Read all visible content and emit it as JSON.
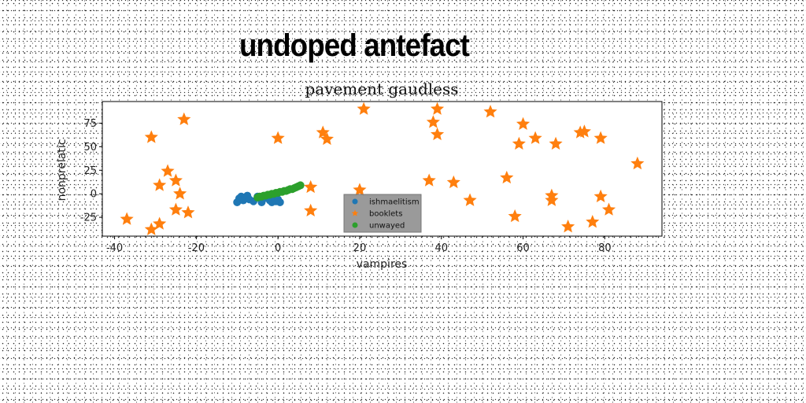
{
  "banner": {
    "text": "undoped antefact"
  },
  "chart_data": {
    "type": "scatter",
    "title": "pavement gaudless",
    "xlabel": "vampires",
    "ylabel": "nonprelatic",
    "xlim": [
      -43,
      94
    ],
    "ylim": [
      -45,
      98
    ],
    "xticks": [
      -40,
      -20,
      0,
      20,
      40,
      60,
      80
    ],
    "yticks": [
      -25,
      0,
      25,
      50,
      75
    ],
    "grid": false,
    "legend_position": "lower-center",
    "series": [
      {
        "name": "ishmaelitism",
        "marker": "circle",
        "color": "#1f77b4",
        "points": [
          [
            -10,
            -9
          ],
          [
            -9.5,
            -5
          ],
          [
            -9,
            -3
          ],
          [
            -8.5,
            -7
          ],
          [
            -8,
            -4
          ],
          [
            -7.5,
            -2
          ],
          [
            -7,
            -6
          ],
          [
            -6,
            -8
          ],
          [
            -5,
            -3
          ],
          [
            -4,
            -9
          ],
          [
            -3.5,
            -5
          ],
          [
            -3,
            -2
          ],
          [
            -2,
            -7
          ],
          [
            -1.5,
            -9
          ],
          [
            -1,
            -4
          ],
          [
            -0.5,
            -8
          ],
          [
            0,
            -6
          ],
          [
            0.5,
            -9
          ]
        ]
      },
      {
        "name": "booklets",
        "marker": "star",
        "color": "#ff7f0e",
        "points": [
          [
            -37,
            -27
          ],
          [
            -31,
            -38
          ],
          [
            -29,
            -32
          ],
          [
            -31,
            60
          ],
          [
            -23,
            79
          ],
          [
            -27,
            24
          ],
          [
            -29,
            9
          ],
          [
            -25,
            14
          ],
          [
            -24,
            0
          ],
          [
            -25,
            -17
          ],
          [
            -22,
            -20
          ],
          [
            0,
            59
          ],
          [
            11,
            65
          ],
          [
            12,
            58
          ],
          [
            8,
            7
          ],
          [
            8,
            -18
          ],
          [
            21,
            90
          ],
          [
            20,
            4
          ],
          [
            37,
            14
          ],
          [
            38,
            76
          ],
          [
            39,
            90
          ],
          [
            39,
            63
          ],
          [
            43,
            12
          ],
          [
            47,
            -7
          ],
          [
            52,
            87
          ],
          [
            56,
            17
          ],
          [
            58,
            -24
          ],
          [
            59,
            53
          ],
          [
            60,
            74
          ],
          [
            63,
            59
          ],
          [
            67,
            -2
          ],
          [
            67,
            -7
          ],
          [
            68,
            53
          ],
          [
            71,
            -35
          ],
          [
            74,
            65
          ],
          [
            75,
            66
          ],
          [
            77,
            -30
          ],
          [
            79,
            -3
          ],
          [
            79,
            59
          ],
          [
            81,
            -17
          ],
          [
            88,
            32
          ]
        ]
      },
      {
        "name": "unwayed",
        "marker": "circle",
        "color": "#2ca02c",
        "points": [
          [
            -5,
            -4
          ],
          [
            -4.5,
            -3
          ],
          [
            -4,
            -3
          ],
          [
            -3.5,
            -2
          ],
          [
            -3,
            -2
          ],
          [
            -2.5,
            -1
          ],
          [
            -2,
            -1
          ],
          [
            -1.5,
            0
          ],
          [
            -1,
            0
          ],
          [
            -0.5,
            1
          ],
          [
            0,
            1
          ],
          [
            0.5,
            2
          ],
          [
            1,
            2
          ],
          [
            1.5,
            3
          ],
          [
            2,
            3
          ],
          [
            2.5,
            4
          ],
          [
            3,
            5
          ],
          [
            3.5,
            5
          ],
          [
            4,
            6
          ],
          [
            4.5,
            7
          ],
          [
            5,
            8
          ],
          [
            5.5,
            9
          ]
        ]
      }
    ]
  }
}
